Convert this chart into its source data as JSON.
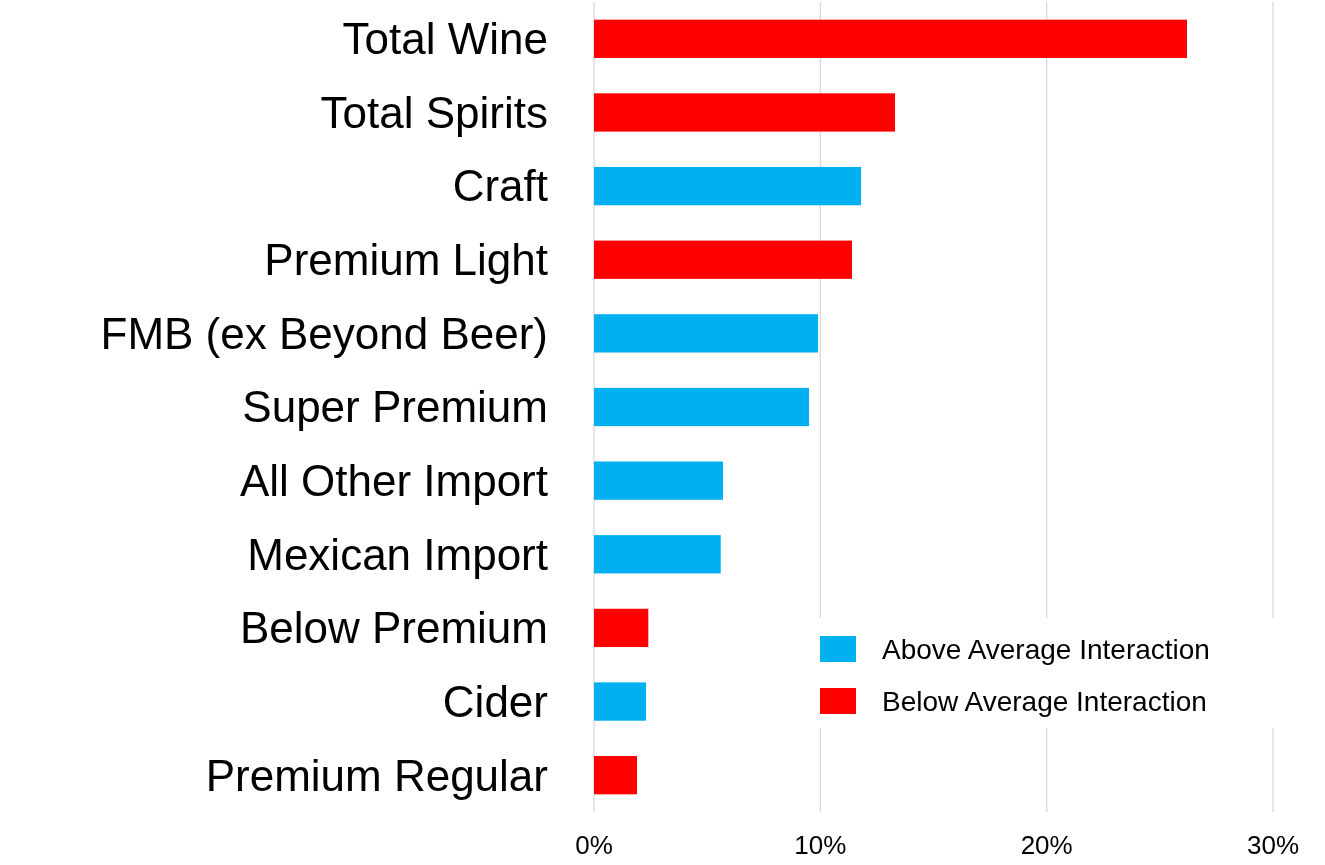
{
  "chart_data": {
    "type": "bar",
    "orientation": "horizontal",
    "categories": [
      "Total Wine",
      "Total Spirits",
      "Craft",
      "Premium Light",
      "FMB (ex Beyond Beer)",
      "Super Premium",
      "All Other Import",
      "Mexican Import",
      "Below Premium",
      "Cider",
      "Premium Regular"
    ],
    "series": [
      {
        "name": "Above Average Interaction",
        "color": "#00b0f0",
        "values": [
          null,
          null,
          11.8,
          null,
          9.9,
          9.5,
          5.7,
          5.6,
          null,
          2.3,
          null
        ]
      },
      {
        "name": "Below Average Interaction",
        "color": "#ff0000",
        "values": [
          26.2,
          13.3,
          null,
          11.4,
          null,
          null,
          null,
          null,
          2.4,
          null,
          1.9
        ]
      }
    ],
    "xlim": [
      0,
      30
    ],
    "xticks": [
      {
        "value": 0,
        "label": "0%"
      },
      {
        "value": 10,
        "label": "10%"
      },
      {
        "value": 20,
        "label": "20%"
      },
      {
        "value": 30,
        "label": "30%"
      }
    ],
    "grid": "x",
    "legend": "bottom right"
  }
}
